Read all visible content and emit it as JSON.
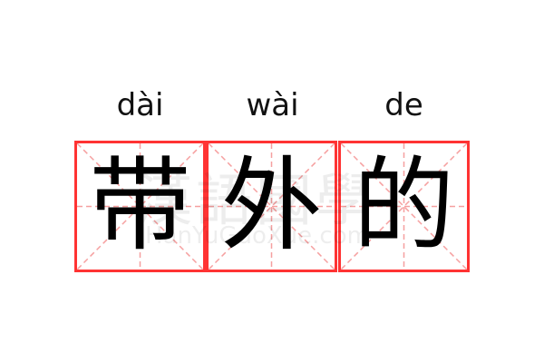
{
  "entries": [
    {
      "pinyin": "dài",
      "char": "带"
    },
    {
      "pinyin": "wài",
      "char": "外"
    },
    {
      "pinyin": "de",
      "char": "的"
    }
  ],
  "watermark": {
    "logo_text": "漢語國學",
    "site": "HanYuGuoXue.com"
  },
  "colors": {
    "border": "#ff3333",
    "guide": "#f6a0a0",
    "text": "#000000"
  }
}
